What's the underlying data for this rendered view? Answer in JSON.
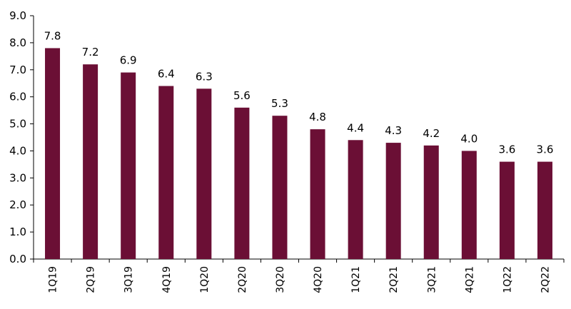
{
  "colors": {
    "bar": "#6B0F35",
    "axis": "#000000",
    "text": "#000000",
    "background": "#ffffff"
  },
  "chart_data": {
    "type": "bar",
    "title": "",
    "xlabel": "",
    "ylabel": "",
    "categories": [
      "1Q19",
      "2Q19",
      "3Q19",
      "4Q19",
      "1Q20",
      "2Q20",
      "3Q20",
      "4Q20",
      "1Q21",
      "2Q21",
      "3Q21",
      "4Q21",
      "1Q22",
      "2Q22"
    ],
    "values": [
      7.8,
      7.2,
      6.9,
      6.4,
      6.3,
      5.6,
      5.3,
      4.8,
      4.4,
      4.3,
      4.2,
      4.0,
      3.6,
      3.6
    ],
    "data_labels": [
      "7.8",
      "7.2",
      "6.9",
      "6.4",
      "6.3",
      "5.6",
      "5.3",
      "4.8",
      "4.4",
      "4.3",
      "4.2",
      "4.0",
      "3.6",
      "3.6"
    ],
    "ylim": [
      0,
      9
    ],
    "yticks": [
      0,
      1,
      2,
      3,
      4,
      5,
      6,
      7,
      8,
      9
    ],
    "ytick_labels": [
      "0.0",
      "1.0",
      "2.0",
      "3.0",
      "4.0",
      "5.0",
      "6.0",
      "7.0",
      "8.0",
      "9.0"
    ],
    "x_tick_rotation": "vertical",
    "grid": false,
    "legend": "none"
  }
}
